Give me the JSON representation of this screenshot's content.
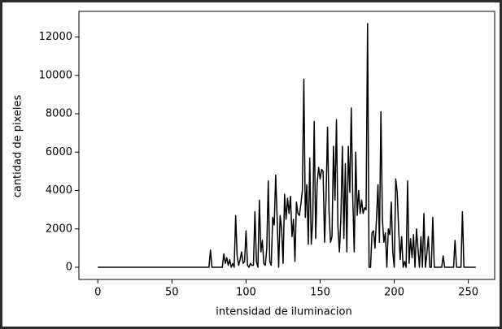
{
  "chart_data": {
    "type": "line",
    "xlabel": "intensidad de iluminacion",
    "ylabel": "cantidad de pixeles",
    "color": "#000000",
    "x": [
      0,
      1,
      2,
      3,
      4,
      5,
      6,
      7,
      8,
      9,
      10,
      11,
      12,
      13,
      14,
      15,
      16,
      17,
      18,
      19,
      20,
      21,
      22,
      23,
      24,
      25,
      26,
      27,
      28,
      29,
      30,
      31,
      32,
      33,
      34,
      35,
      36,
      37,
      38,
      39,
      40,
      41,
      42,
      43,
      44,
      45,
      46,
      47,
      48,
      49,
      50,
      51,
      52,
      53,
      54,
      55,
      56,
      57,
      58,
      59,
      60,
      61,
      62,
      63,
      64,
      65,
      66,
      67,
      68,
      69,
      70,
      71,
      72,
      73,
      74,
      75,
      76,
      77,
      78,
      79,
      80,
      81,
      82,
      83,
      84,
      85,
      86,
      87,
      88,
      89,
      90,
      91,
      92,
      93,
      94,
      95,
      96,
      97,
      98,
      99,
      100,
      101,
      102,
      103,
      104,
      105,
      106,
      107,
      108,
      109,
      110,
      111,
      112,
      113,
      114,
      115,
      116,
      117,
      118,
      119,
      120,
      121,
      122,
      123,
      124,
      125,
      126,
      127,
      128,
      129,
      130,
      131,
      132,
      133,
      134,
      135,
      136,
      137,
      138,
      139,
      140,
      141,
      142,
      143,
      144,
      145,
      146,
      147,
      148,
      149,
      150,
      151,
      152,
      153,
      154,
      155,
      156,
      157,
      158,
      159,
      160,
      161,
      162,
      163,
      164,
      165,
      166,
      167,
      168,
      169,
      170,
      171,
      172,
      173,
      174,
      175,
      176,
      177,
      178,
      179,
      180,
      181,
      182,
      183,
      184,
      185,
      186,
      187,
      188,
      189,
      190,
      191,
      192,
      193,
      194,
      195,
      196,
      197,
      198,
      199,
      200,
      201,
      202,
      203,
      204,
      205,
      206,
      207,
      208,
      209,
      210,
      211,
      212,
      213,
      214,
      215,
      216,
      217,
      218,
      219,
      220,
      221,
      222,
      223,
      224,
      225,
      226,
      227,
      228,
      229,
      230,
      231,
      232,
      233,
      234,
      235,
      236,
      237,
      238,
      239,
      240,
      241,
      242,
      243,
      244,
      245,
      246,
      247,
      248,
      249,
      250,
      251,
      252,
      253,
      254,
      255
    ],
    "values": [
      0,
      0,
      0,
      0,
      0,
      0,
      0,
      0,
      0,
      0,
      0,
      0,
      0,
      0,
      0,
      0,
      0,
      0,
      0,
      0,
      0,
      0,
      0,
      0,
      0,
      0,
      0,
      0,
      0,
      0,
      0,
      0,
      0,
      0,
      0,
      0,
      0,
      0,
      0,
      0,
      0,
      0,
      0,
      0,
      0,
      0,
      0,
      0,
      0,
      0,
      0,
      0,
      0,
      0,
      0,
      0,
      0,
      0,
      0,
      0,
      0,
      0,
      0,
      0,
      0,
      0,
      0,
      0,
      0,
      0,
      0,
      0,
      0,
      0,
      0,
      0,
      900,
      0,
      0,
      0,
      0,
      0,
      0,
      0,
      0,
      700,
      200,
      500,
      100,
      400,
      0,
      200,
      0,
      2700,
      600,
      100,
      400,
      800,
      200,
      300,
      1900,
      100,
      0,
      200,
      100,
      100,
      2900,
      300,
      0,
      3500,
      800,
      1400,
      200,
      100,
      1000,
      4500,
      300,
      100,
      2600,
      2200,
      4800,
      2500,
      0,
      2700,
      2000,
      200,
      3800,
      2500,
      3600,
      2800,
      3700,
      1600,
      2500,
      300,
      3400,
      2800,
      2700,
      3300,
      4000,
      9800,
      2600,
      4300,
      1200,
      5700,
      1200,
      2400,
      7600,
      1500,
      4400,
      5200,
      4600,
      5100,
      5000,
      1300,
      3700,
      7300,
      2900,
      1300,
      1600,
      6300,
      3500,
      7700,
      2100,
      800,
      2600,
      6300,
      1500,
      5400,
      800,
      6300,
      3900,
      8300,
      3600,
      800,
      6000,
      2700,
      4000,
      2800,
      3500,
      2800,
      3100,
      3000,
      12700,
      0,
      0,
      1800,
      1900,
      1000,
      2500,
      4300,
      1300,
      8100,
      2500,
      1300,
      1800,
      0,
      2000,
      1700,
      3400,
      800,
      0,
      4600,
      3900,
      1900,
      400,
      1600,
      0,
      300,
      0,
      4500,
      200,
      1500,
      500,
      1700,
      0,
      2000,
      1000,
      0,
      1600,
      0,
      2800,
      0,
      700,
      1600,
      0,
      0,
      2600,
      0,
      0,
      0,
      0,
      0,
      0,
      600,
      0,
      0,
      0,
      0,
      0,
      0,
      0,
      1400,
      0,
      0,
      0,
      0,
      2900,
      0,
      0,
      0,
      0,
      0,
      0,
      0,
      0,
      0
    ],
    "xlim": [
      -12.75,
      267.75
    ],
    "xticks": [
      0,
      50,
      100,
      150,
      200,
      250
    ],
    "ylim": [
      -635,
      13335
    ],
    "yticks": [
      0,
      2000,
      4000,
      6000,
      8000,
      10000,
      12000
    ]
  }
}
